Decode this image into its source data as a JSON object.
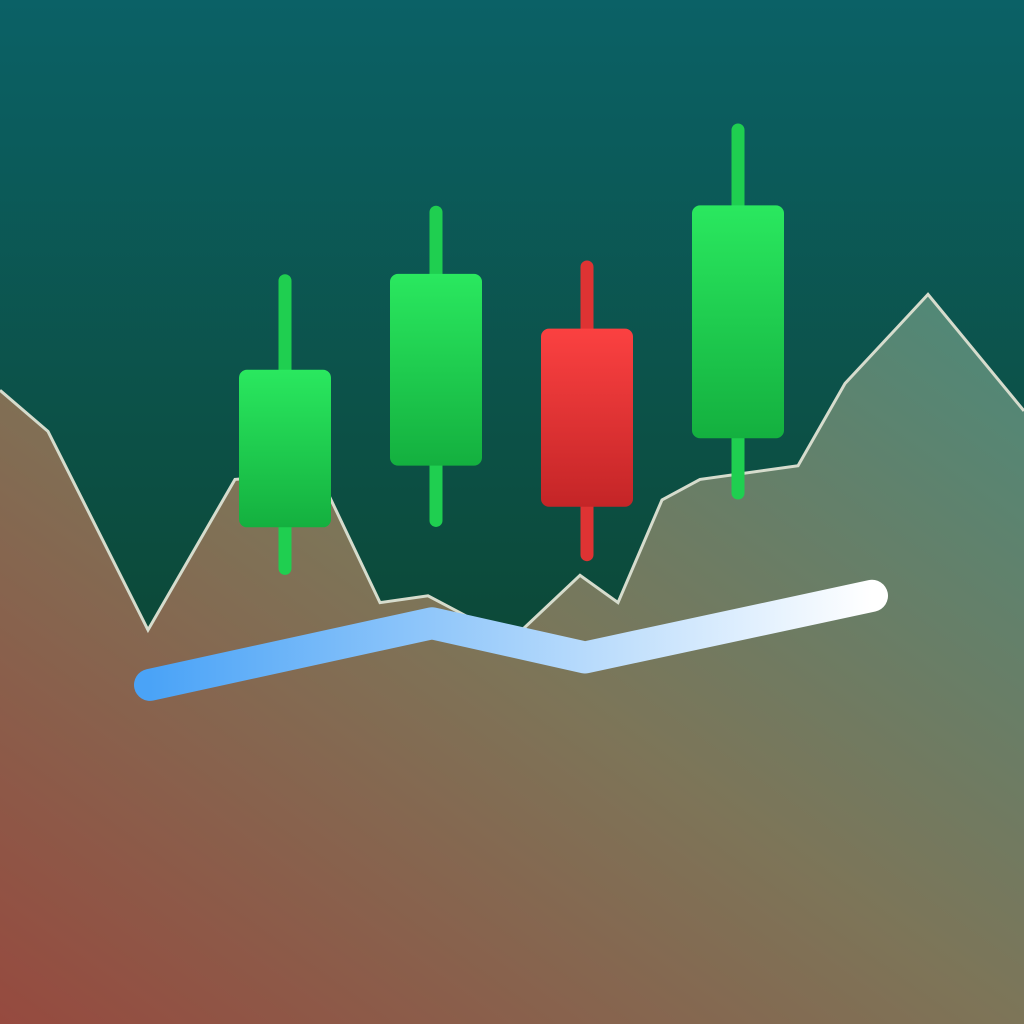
{
  "icon": {
    "subject": "stock-chart-icon",
    "elements": [
      "background",
      "area-chart",
      "candlestick-chart",
      "trend-line"
    ]
  },
  "colors": {
    "background_top": "#0b6166",
    "background_bottom": "#0c4632",
    "area_warm": "#964a3f",
    "area_mid": "#7d7558",
    "area_cool": "#4d8a7a",
    "area_outline": "#d6dccd",
    "bull_light": "#2ae85f",
    "bull_dark": "#14b03f",
    "bear_light": "#fb4141",
    "bear_dark": "#c42527",
    "trend_start": "#4aa3f7",
    "trend_end": "#ffffff"
  },
  "candles": [
    {
      "direction": "up",
      "open": 42,
      "close": 65,
      "high": 78,
      "low": 36
    },
    {
      "direction": "up",
      "open": 51,
      "close": 79,
      "high": 88,
      "low": 43
    },
    {
      "direction": "down",
      "open": 71,
      "close": 45,
      "high": 80,
      "low": 38
    },
    {
      "direction": "up",
      "open": 55,
      "close": 89,
      "high": 100,
      "low": 47
    }
  ],
  "area_series": [
    62,
    56,
    27,
    49,
    50,
    31,
    32,
    29,
    27,
    35,
    31,
    46,
    49,
    51,
    63,
    76,
    59
  ],
  "trend_series": [
    19,
    28,
    23,
    32
  ]
}
